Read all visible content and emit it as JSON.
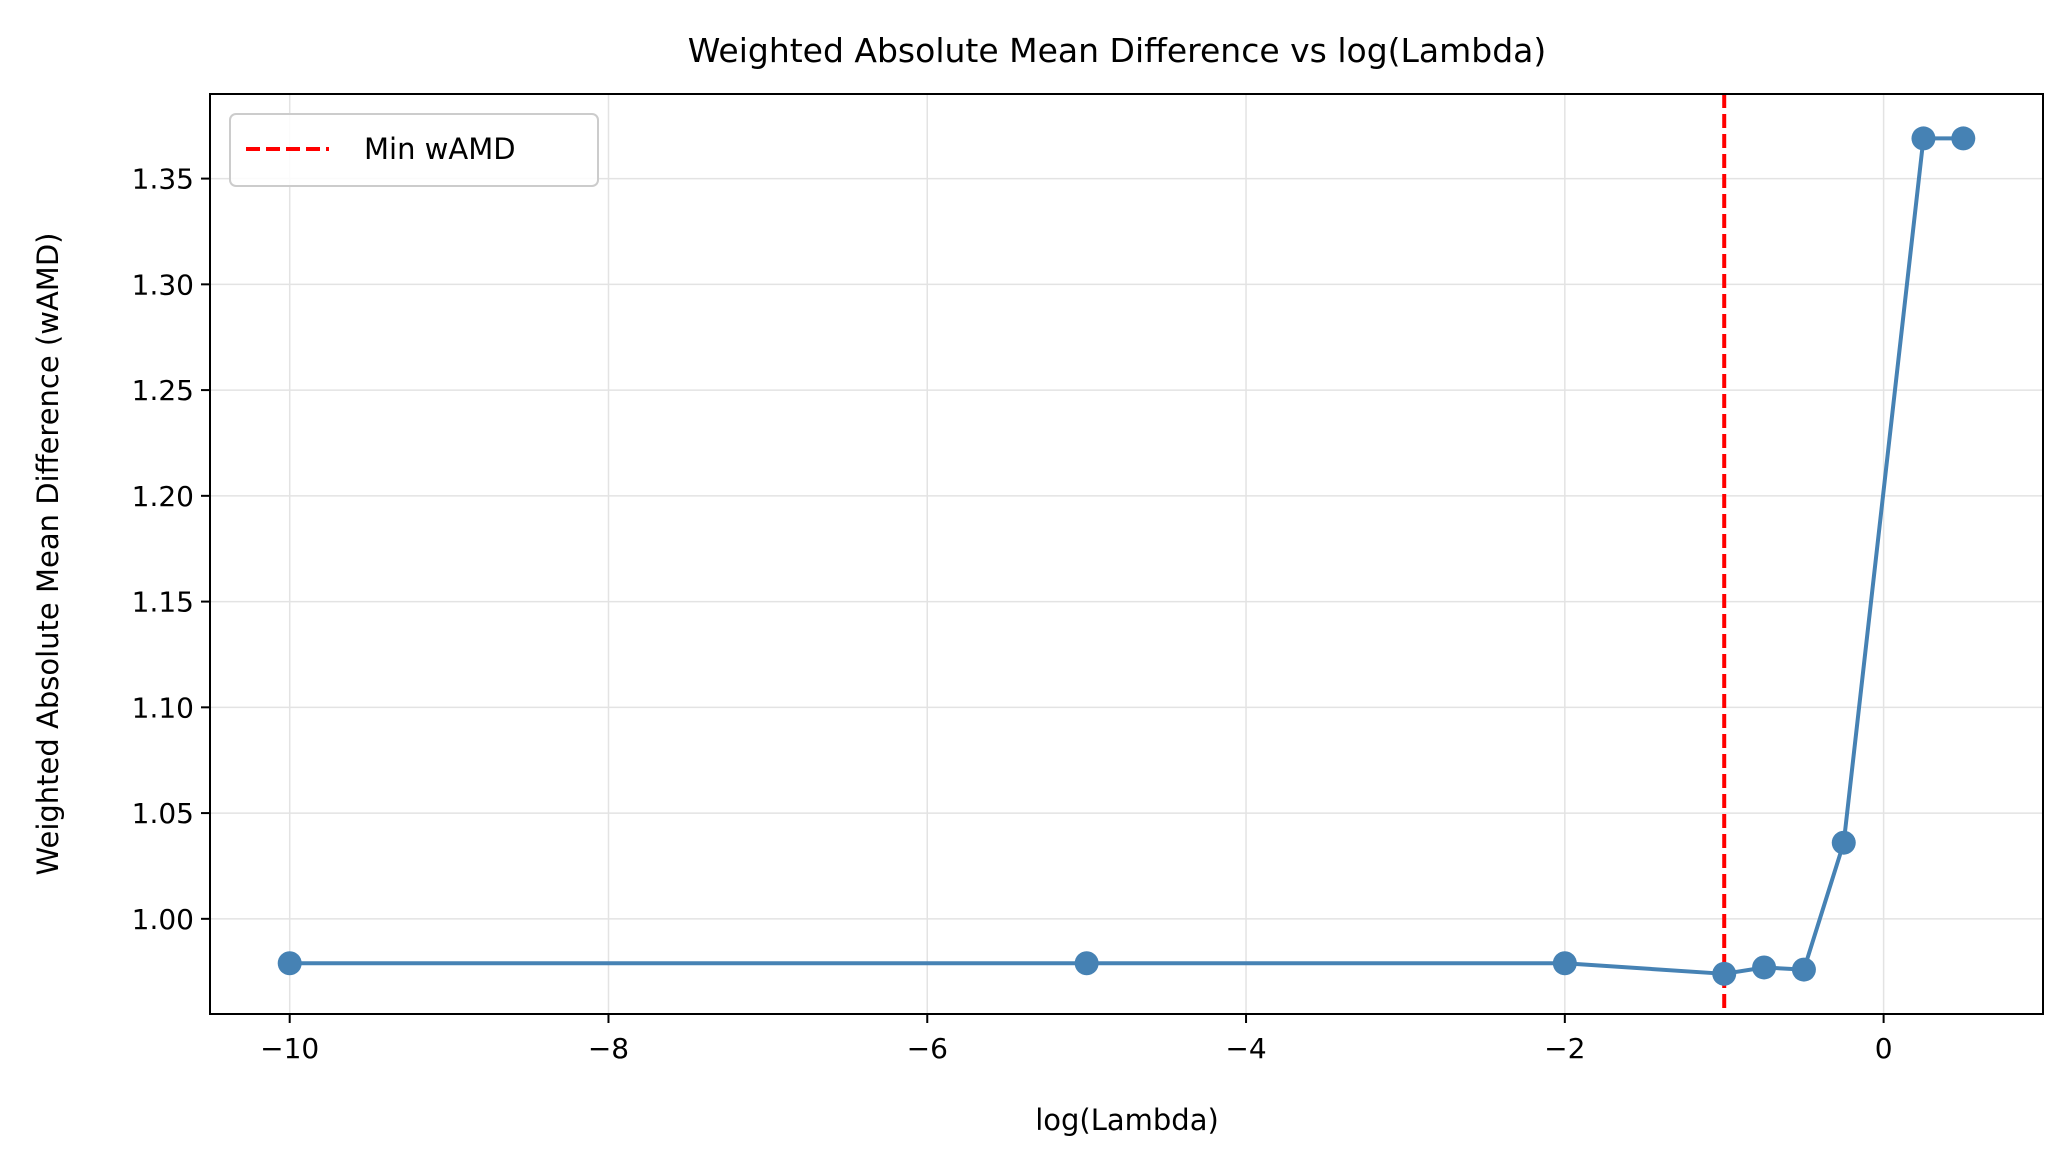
{
  "chart_data": {
    "type": "line",
    "title": "Weighted Absolute Mean Difference vs log(Lambda)",
    "xlabel": "log(Lambda)",
    "ylabel": "Weighted Absolute Mean Difference (wAMD)",
    "xlim": [
      -10.5,
      1.0
    ],
    "ylim": [
      0.955,
      1.39
    ],
    "x_ticks": [
      -10,
      -8,
      -6,
      -4,
      -2,
      0
    ],
    "x_tick_labels": [
      "−10",
      "−8",
      "−6",
      "−4",
      "−2",
      "0"
    ],
    "y_ticks": [
      1.0,
      1.05,
      1.1,
      1.15,
      1.2,
      1.25,
      1.3,
      1.35
    ],
    "y_tick_labels": [
      "1.00",
      "1.05",
      "1.10",
      "1.15",
      "1.20",
      "1.25",
      "1.30",
      "1.35"
    ],
    "grid": true,
    "legend_position": "top-left",
    "series": [
      {
        "color": "#4682b4",
        "marker": "circle",
        "x": [
          -10,
          -5,
          -2,
          -1,
          -0.75,
          -0.5,
          -0.25,
          0.25,
          0.5
        ],
        "y": [
          0.979,
          0.979,
          0.979,
          0.974,
          0.977,
          0.976,
          1.036,
          1.369,
          1.369
        ]
      }
    ],
    "reference_lines": [
      {
        "name": "Min wAMD",
        "orientation": "vertical",
        "x": -1,
        "color": "#ff0000",
        "style": "dashed"
      }
    ]
  }
}
